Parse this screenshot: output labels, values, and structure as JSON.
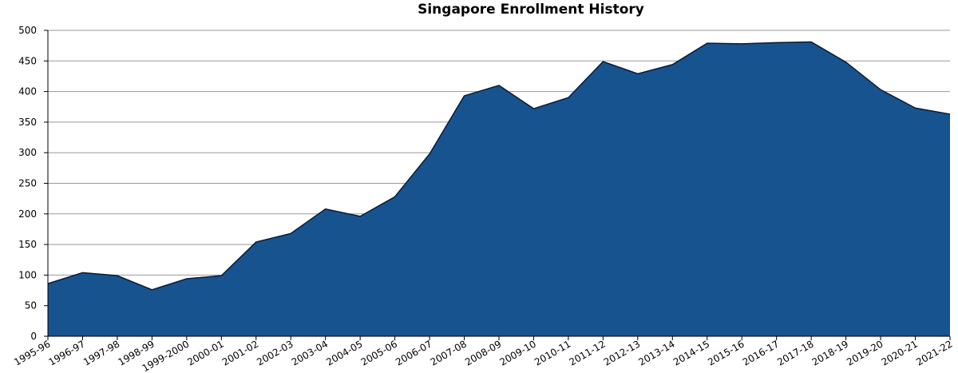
{
  "chart_data": {
    "type": "area",
    "title": "Singapore Enrollment History",
    "categories": [
      "1995-96",
      "1996-97",
      "1997-98",
      "1998-99",
      "1999-2000",
      "2000-01",
      "2001-02",
      "2002-03",
      "2003-04",
      "2004-05",
      "2005-06",
      "2006-07",
      "2007-08",
      "2008-09",
      "2009-10",
      "2010-11",
      "2011-12",
      "2012-13",
      "2013-14",
      "2014-15",
      "2015-16",
      "2016-17",
      "2017-18",
      "2018-19",
      "2019-20",
      "2020-21",
      "2021-22"
    ],
    "values": [
      86,
      104,
      99,
      76,
      94,
      99,
      154,
      168,
      208,
      196,
      228,
      298,
      393,
      410,
      372,
      390,
      449,
      429,
      444,
      479,
      478,
      480,
      481,
      448,
      403,
      373,
      363
    ],
    "color": "#17538f",
    "ylim": [
      0,
      500
    ],
    "yticks": [
      0,
      50,
      100,
      150,
      200,
      250,
      300,
      350,
      400,
      450,
      500
    ],
    "grid": true
  }
}
